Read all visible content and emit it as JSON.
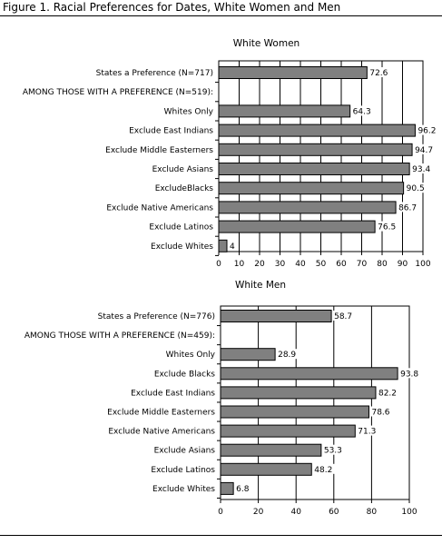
{
  "figure_title": "Figure 1. Racial Preferences for Dates, White Women and Men",
  "chart_data": [
    {
      "type": "bar",
      "orientation": "horizontal",
      "title": "White Women",
      "categories": [
        "States a Preference (N=717)",
        "AMONG THOSE WITH A PREFERENCE (N=519):",
        "Whites Only",
        "Exclude East Indians",
        "Exclude Middle Easterners",
        "Exclude Asians",
        "ExcludeBlacks",
        "Exclude Native Americans",
        "Exclude Latinos",
        "Exclude Whites"
      ],
      "values": [
        72.6,
        null,
        64.3,
        96.2,
        94.7,
        93.4,
        90.5,
        86.7,
        76.5,
        4
      ],
      "data_labels": [
        "72.6",
        "",
        "64.3",
        "96.2",
        "94.7",
        "93.4",
        "90.5",
        "86.7",
        "76.5",
        "4"
      ],
      "xlim": [
        0,
        100
      ],
      "xticks": [
        0,
        10,
        20,
        30,
        40,
        50,
        60,
        70,
        80,
        90,
        100
      ],
      "grid": "vertical",
      "bar_color": "#808080"
    },
    {
      "type": "bar",
      "orientation": "horizontal",
      "title": "White Men",
      "categories": [
        "States a Preference (N=776)",
        "AMONG THOSE WITH A PREFERENCE (N=459):",
        "Whites Only",
        "Exclude Blacks",
        "Exclude East Indians",
        "Exclude Middle Easterners",
        "Exclude Native Americans",
        "Exclude Asians",
        "Exclude Latinos",
        "Exclude Whites"
      ],
      "values": [
        58.7,
        null,
        28.9,
        93.8,
        82.2,
        78.6,
        71.3,
        53.3,
        48.2,
        6.8
      ],
      "data_labels": [
        "58.7",
        "",
        "28.9",
        "93.8",
        "82.2",
        "78.6",
        "71.3",
        "53.3",
        "48.2",
        "6.8"
      ],
      "xlim": [
        0,
        100
      ],
      "xticks": [
        0,
        20,
        40,
        60,
        80,
        100
      ],
      "grid": "vertical",
      "bar_color": "#808080"
    }
  ]
}
